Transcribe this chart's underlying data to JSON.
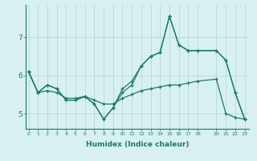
{
  "xlabel": "Humidex (Indice chaleur)",
  "bg_color": "#d8f0f0",
  "line_color": "#1a7a6e",
  "grid_color": "#b0d4d4",
  "x_data": [
    0,
    1,
    2,
    3,
    4,
    5,
    6,
    7,
    8,
    9,
    10,
    11,
    12,
    13,
    14,
    15,
    16,
    17,
    18,
    20,
    21,
    22,
    23
  ],
  "y_main": [
    6.1,
    5.55,
    5.75,
    5.65,
    5.35,
    5.35,
    5.45,
    5.25,
    4.85,
    5.15,
    5.55,
    5.75,
    6.25,
    6.5,
    6.6,
    7.55,
    6.8,
    6.65,
    6.65,
    6.65,
    6.4,
    5.55,
    4.85
  ],
  "y_smooth_high": [
    6.1,
    5.55,
    5.75,
    5.65,
    5.35,
    5.35,
    5.45,
    5.25,
    4.85,
    5.15,
    5.65,
    5.85,
    6.25,
    6.5,
    6.6,
    7.55,
    6.8,
    6.65,
    6.65,
    6.65,
    6.4,
    5.55,
    4.85
  ],
  "y_smooth_low": [
    6.1,
    5.55,
    5.6,
    5.55,
    5.4,
    5.4,
    5.45,
    5.35,
    5.25,
    5.25,
    5.4,
    5.5,
    5.6,
    5.65,
    5.7,
    5.75,
    5.75,
    5.8,
    5.85,
    5.9,
    5.0,
    4.9,
    4.85
  ],
  "yticks": [
    5,
    6,
    7
  ],
  "xtick_labels": [
    "0",
    "1",
    "2",
    "3",
    "4",
    "5",
    "6",
    "7",
    "8",
    "9",
    "10",
    "11",
    "12",
    "13",
    "14",
    "15",
    "16",
    "17",
    "18",
    "20",
    "21",
    "22",
    "23"
  ],
  "xtick_positions": [
    0,
    1,
    2,
    3,
    4,
    5,
    6,
    7,
    8,
    9,
    10,
    11,
    12,
    13,
    14,
    15,
    16,
    17,
    18,
    20,
    21,
    22,
    23
  ],
  "xlim": [
    -0.3,
    23.5
  ],
  "ylim": [
    4.6,
    7.85
  ]
}
